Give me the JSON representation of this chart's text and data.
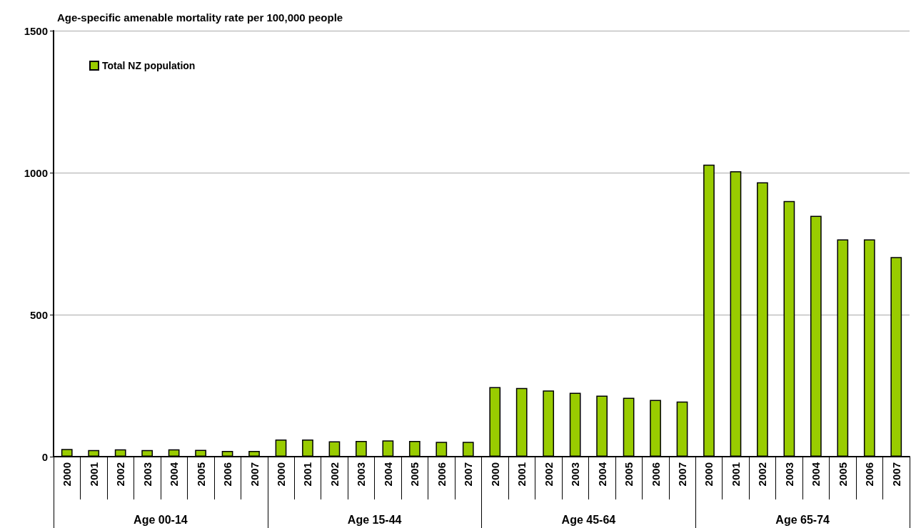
{
  "chart_data": {
    "type": "bar",
    "title": "Age-specific amenable mortality rate per 100,000 people",
    "categories": [
      "2000",
      "2001",
      "2002",
      "2003",
      "2004",
      "2005",
      "2006",
      "2007",
      "2000",
      "2001",
      "2002",
      "2003",
      "2004",
      "2005",
      "2006",
      "2007",
      "2000",
      "2001",
      "2002",
      "2003",
      "2004",
      "2005",
      "2006",
      "2007",
      "2000",
      "2001",
      "2002",
      "2003",
      "2004",
      "2005",
      "2006",
      "2007"
    ],
    "series": [
      {
        "name": "Total NZ population",
        "color": "#99cc00",
        "values": [
          27,
          23,
          26,
          23,
          26,
          24,
          20,
          20,
          60,
          60,
          54,
          55,
          57,
          55,
          52,
          52,
          245,
          242,
          233,
          225,
          215,
          207,
          200,
          194,
          1028,
          1005,
          966,
          900,
          848,
          765,
          765,
          703
        ]
      }
    ],
    "annotations": [
      "Age 00-14",
      "Age 15-44",
      "Age 45-64",
      "Age 65-74"
    ],
    "ylim": [
      0,
      1500
    ],
    "yticks": [
      0,
      500,
      1000,
      1500
    ],
    "grid": "y",
    "legend": "top left"
  }
}
